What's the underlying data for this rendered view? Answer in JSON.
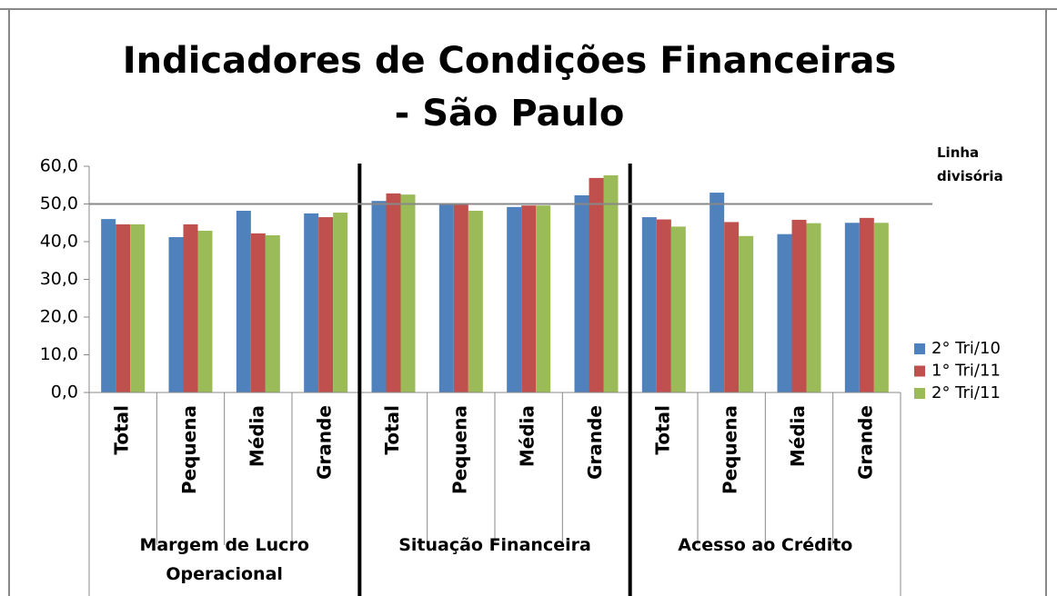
{
  "chart_data": {
    "type": "bar",
    "title": "Indicadores de Condições Financeiras - São Paulo",
    "categories": [
      "Total",
      "Pequena",
      "Média",
      "Grande",
      "Total",
      "Pequena",
      "Média",
      "Grande",
      "Total",
      "Pequena",
      "Média",
      "Grande"
    ],
    "groups": [
      "Margem de Lucro Operacional",
      "Situação Financeira",
      "Acesso ao Crédito"
    ],
    "series": [
      {
        "name": "2° Tri/10",
        "color": "#4f81bd",
        "values": [
          46.0,
          41.2,
          48.2,
          47.5,
          50.8,
          49.9,
          49.2,
          52.3,
          46.5,
          53.0,
          42.0,
          45.0
        ]
      },
      {
        "name": "1° Tri/11",
        "color": "#c0504d",
        "values": [
          44.6,
          44.6,
          42.2,
          46.5,
          52.8,
          49.9,
          49.6,
          56.9,
          45.9,
          45.2,
          45.8,
          46.3
        ]
      },
      {
        "name": "2° Tri/11",
        "color": "#9bbb59",
        "values": [
          44.6,
          42.9,
          41.7,
          47.7,
          52.5,
          48.2,
          49.6,
          57.6,
          44.0,
          41.5,
          44.9,
          45.0
        ]
      }
    ],
    "ylim": [
      0,
      60
    ],
    "yticks": [
      {
        "value": 0,
        "label": "0,0"
      },
      {
        "value": 10,
        "label": "10,0"
      },
      {
        "value": 20,
        "label": "20,0"
      },
      {
        "value": 30,
        "label": "30,0"
      },
      {
        "value": 40,
        "label": "40,0"
      },
      {
        "value": 50,
        "label": "50,0"
      },
      {
        "value": 60,
        "label": "60,0"
      }
    ],
    "divider": {
      "label": "Linha divisória",
      "value": 50
    },
    "legend": "right"
  }
}
